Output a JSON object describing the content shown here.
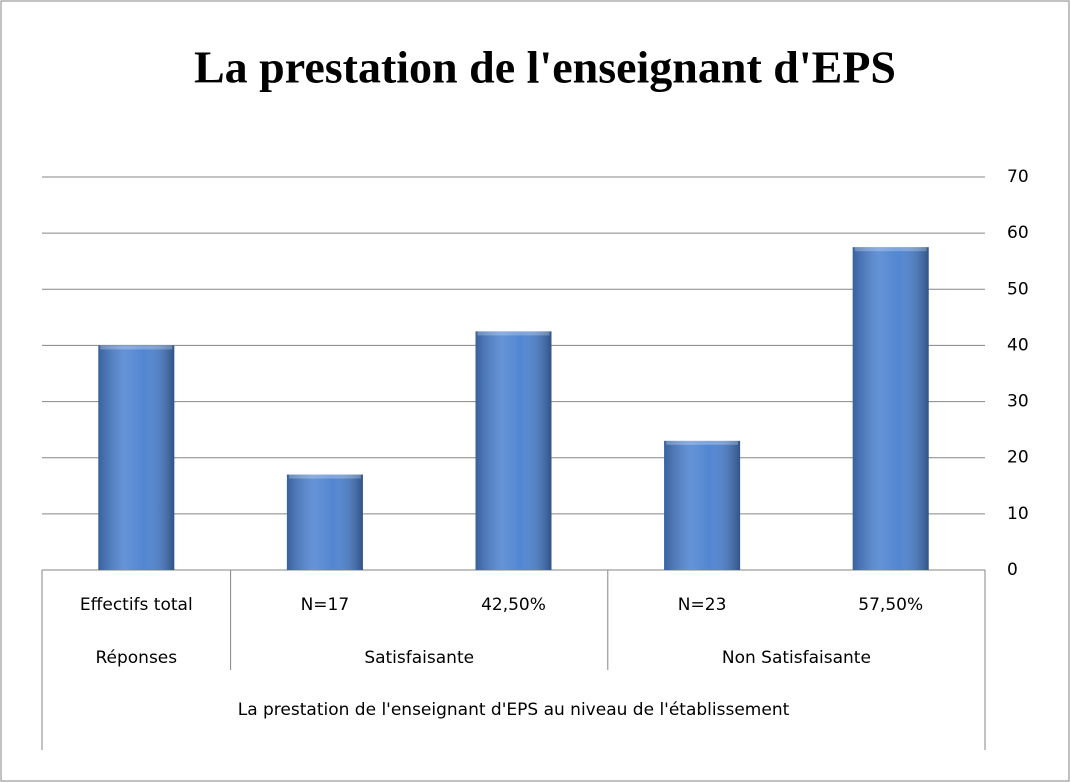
{
  "chart_data": {
    "type": "bar",
    "title": "La prestation de l'enseignant d'EPS",
    "categories": [
      "Effectifs total",
      "N=17",
      "42,50%",
      "N=23",
      "57,50%"
    ],
    "group_labels": [
      "Réponses",
      "Satisfaisante",
      "Non Satisfaisante"
    ],
    "group_sizes": [
      1,
      2,
      2
    ],
    "x_label": "La prestation de l'enseignant d'EPS au niveau de l'établissement",
    "values": [
      40,
      17,
      42.5,
      23,
      57.5
    ],
    "color": "#4a80d0",
    "ylim": [
      0,
      70
    ],
    "yticks": [
      0,
      10,
      20,
      30,
      40,
      50,
      60,
      70
    ],
    "y_axis_side": "right",
    "grid": true
  }
}
